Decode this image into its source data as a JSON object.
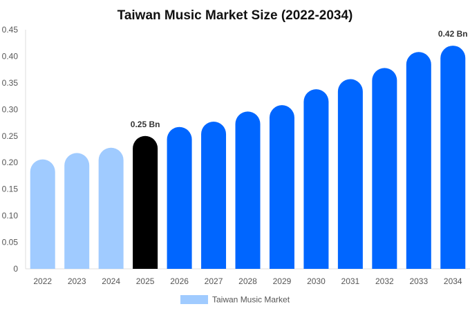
{
  "chart_data": {
    "type": "bar",
    "title": "Taiwan Music Market Size (2022-2034)",
    "categories": [
      "2022",
      "2023",
      "2024",
      "2025",
      "2026",
      "2027",
      "2028",
      "2029",
      "2030",
      "2031",
      "2032",
      "2033",
      "2034"
    ],
    "series": [
      {
        "name": "Taiwan Music Market",
        "values": [
          0.206,
          0.218,
          0.228,
          0.25,
          0.267,
          0.277,
          0.296,
          0.308,
          0.338,
          0.357,
          0.378,
          0.408,
          0.42
        ]
      }
    ],
    "data_labels": [
      {
        "category": "2025",
        "text": "0.25 Bn"
      },
      {
        "category": "2034",
        "text": "0.42 Bn"
      }
    ],
    "ylim": [
      0,
      0.45
    ],
    "yticks": [
      "0",
      "0.05",
      "0.10",
      "0.15",
      "0.20",
      "0.25",
      "0.30",
      "0.35",
      "0.40",
      "0.45"
    ],
    "grid": false,
    "legend_placement": "bottom",
    "colors": {
      "historical": "#a0cbff",
      "current": "#000000",
      "forecast": "#0066ff",
      "legend_swatch": "#a0cbff"
    },
    "bar_color_roles": [
      "historical",
      "historical",
      "historical",
      "current",
      "forecast",
      "forecast",
      "forecast",
      "forecast",
      "forecast",
      "forecast",
      "forecast",
      "forecast",
      "forecast"
    ]
  }
}
